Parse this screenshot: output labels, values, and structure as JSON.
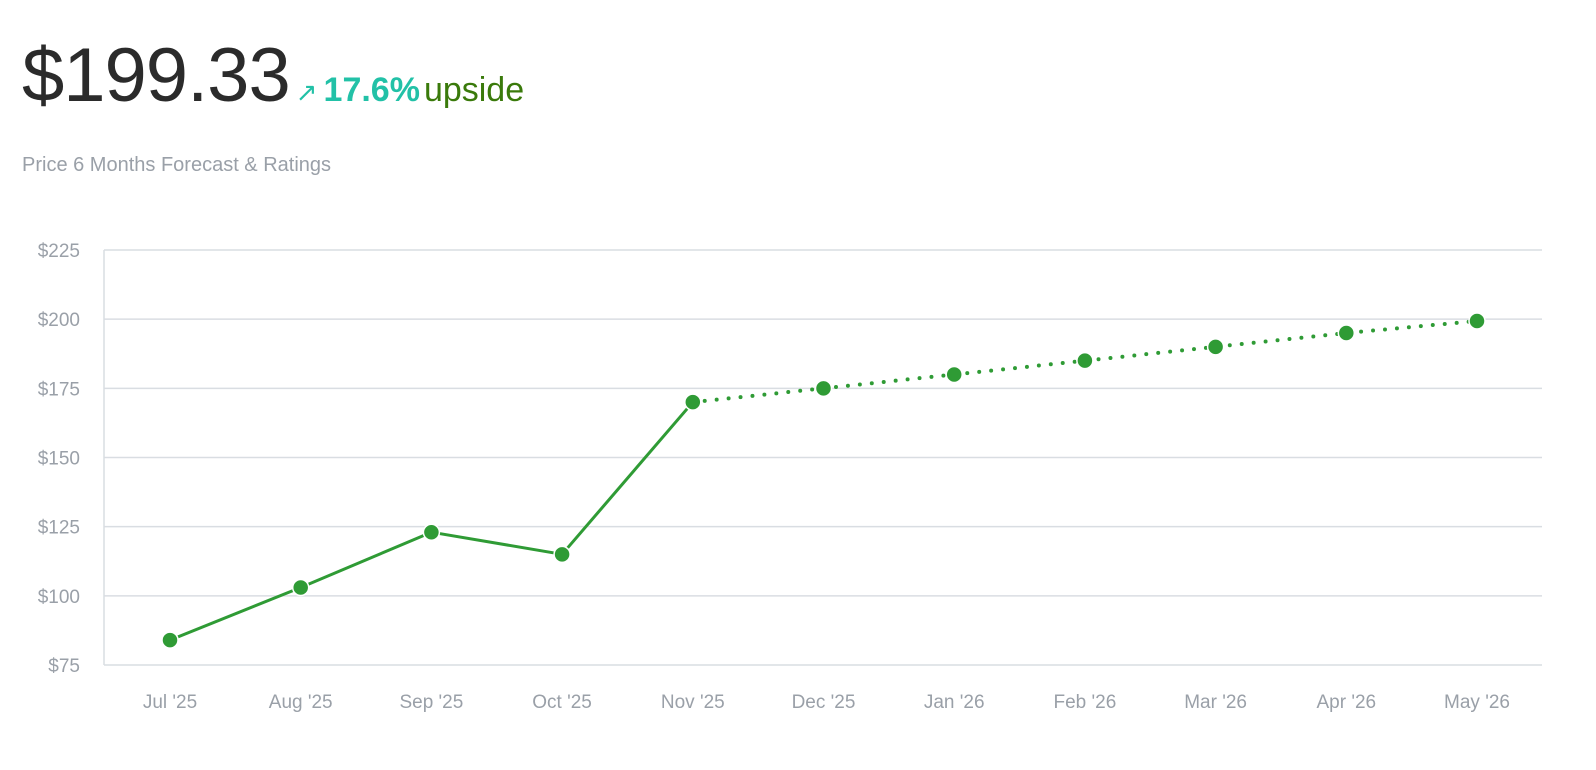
{
  "header": {
    "price": "$199.33",
    "arrow_icon": "north-east-arrow-icon",
    "change_pct": "17.6%",
    "change_label": "upside"
  },
  "subtitle": "Price 6 Months Forecast & Ratings",
  "colors": {
    "line": "#2f9b35",
    "grid": "#d9dde2",
    "tick": "#9aa0a8",
    "accent": "#22c1a7",
    "upside": "#3a7a0b"
  },
  "chart_data": {
    "type": "line",
    "categories": [
      "Jul '25",
      "Aug '25",
      "Sep '25",
      "Oct '25",
      "Nov '25",
      "Dec '25",
      "Jan '26",
      "Feb '26",
      "Mar '26",
      "Apr '26",
      "May '26"
    ],
    "series": [
      {
        "style": "solid",
        "values": [
          84,
          103,
          123,
          115,
          170,
          null,
          null,
          null,
          null,
          null,
          null
        ]
      },
      {
        "style": "dotted",
        "values": [
          null,
          null,
          null,
          null,
          170,
          175,
          180,
          185,
          190,
          195,
          199.33
        ]
      }
    ],
    "yticks": [
      "$225",
      "$200",
      "$175",
      "$150",
      "$125",
      "$100",
      "$75"
    ],
    "ylim": [
      75,
      225
    ],
    "grid": true
  }
}
